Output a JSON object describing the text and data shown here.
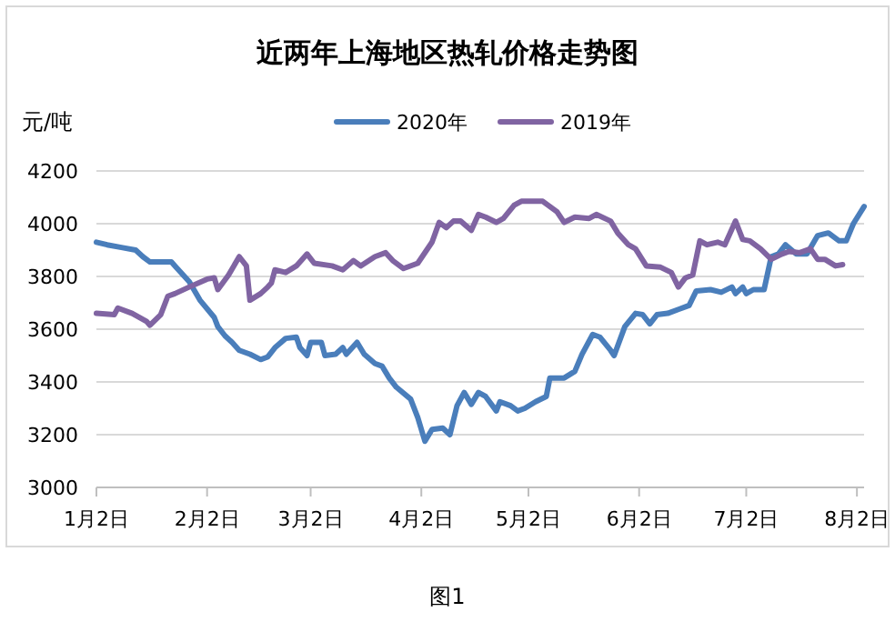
{
  "chart_data": {
    "type": "line",
    "title": "近两年上海地区热轧价格走势图",
    "ylabel": "元/吨",
    "annotations": [
      "图1"
    ],
    "xlim": [
      "--01-02",
      "--08-04"
    ],
    "xticks": [
      {
        "value": "--01-02",
        "label": "1月2日"
      },
      {
        "value": "--02-02",
        "label": "2月2日"
      },
      {
        "value": "--03-02",
        "label": "3月2日"
      },
      {
        "value": "--04-02",
        "label": "4月2日"
      },
      {
        "value": "--05-02",
        "label": "5月2日"
      },
      {
        "value": "--06-02",
        "label": "6月2日"
      },
      {
        "value": "--07-02",
        "label": "7月2日"
      },
      {
        "value": "--08-02",
        "label": "8月2日"
      }
    ],
    "ylim": [
      3000,
      4200
    ],
    "yticks": [
      3000,
      3200,
      3400,
      3600,
      3800,
      4000,
      4200
    ],
    "grid": "y",
    "legend": "top",
    "marker": "none",
    "line_style": "solid",
    "series": [
      {
        "name": "2020年",
        "color": "#4a7ebb",
        "x": [
          "--01-02",
          "--01-05",
          "--01-09",
          "--01-13",
          "--01-15",
          "--01-17",
          "--01-23",
          "--01-24",
          "--01-28",
          "--01-31",
          "--02-04",
          "--02-05",
          "--02-07",
          "--02-09",
          "--02-11",
          "--02-14",
          "--02-17",
          "--02-19",
          "--02-21",
          "--02-24",
          "--02-27",
          "--02-28",
          "--03-01",
          "--03-02",
          "--03-05",
          "--03-06",
          "--03-09",
          "--03-11",
          "--03-12",
          "--03-15",
          "--03-17",
          "--03-20",
          "--03-22",
          "--03-24",
          "--03-26",
          "--03-30",
          "--04-01",
          "--04-03",
          "--04-05",
          "--04-08",
          "--04-10",
          "--04-12",
          "--04-14",
          "--04-16",
          "--04-18",
          "--04-20",
          "--04-23",
          "--04-24",
          "--04-27",
          "--04-29",
          "--05-01",
          "--05-04",
          "--05-07",
          "--05-08",
          "--05-12",
          "--05-15",
          "--05-17",
          "--05-20",
          "--05-22",
          "--05-25",
          "--05-26",
          "--05-29",
          "--06-01",
          "--06-03",
          "--06-05",
          "--06-07",
          "--06-10",
          "--06-13",
          "--06-16",
          "--06-18",
          "--06-22",
          "--06-25",
          "--06-28",
          "--06-29",
          "--07-01",
          "--07-02",
          "--07-04",
          "--07-07",
          "--07-09",
          "--07-11",
          "--07-13",
          "--07-16",
          "--07-19",
          "--07-22",
          "--07-25",
          "--07-28",
          "--07-30",
          "--08-01",
          "--08-04"
        ],
        "values": [
          3930,
          3920,
          3910,
          3900,
          3875,
          3855,
          3855,
          3840,
          3780,
          3710,
          3645,
          3610,
          3575,
          3550,
          3520,
          3505,
          3485,
          3495,
          3530,
          3565,
          3570,
          3530,
          3500,
          3550,
          3550,
          3500,
          3505,
          3530,
          3505,
          3550,
          3505,
          3470,
          3460,
          3415,
          3380,
          3335,
          3265,
          3175,
          3220,
          3225,
          3200,
          3310,
          3360,
          3315,
          3360,
          3345,
          3290,
          3325,
          3310,
          3290,
          3300,
          3325,
          3345,
          3415,
          3415,
          3440,
          3505,
          3580,
          3570,
          3520,
          3500,
          3610,
          3660,
          3655,
          3620,
          3655,
          3660,
          3675,
          3690,
          3745,
          3750,
          3740,
          3760,
          3735,
          3760,
          3735,
          3750,
          3750,
          3875,
          3885,
          3920,
          3885,
          3885,
          3955,
          3965,
          3935,
          3935,
          4000,
          4065
        ]
      },
      {
        "name": "2019年",
        "color": "#8064a2",
        "x": [
          "--01-02",
          "--01-07",
          "--01-08",
          "--01-12",
          "--01-16",
          "--01-17",
          "--01-20",
          "--01-22",
          "--01-24",
          "--01-28",
          "--02-02",
          "--02-04",
          "--02-05",
          "--02-08",
          "--02-11",
          "--02-13",
          "--02-14",
          "--02-17",
          "--02-19",
          "--02-20",
          "--02-21",
          "--02-24",
          "--02-27",
          "--03-01",
          "--03-03",
          "--03-08",
          "--03-11",
          "--03-14",
          "--03-16",
          "--03-20",
          "--03-23",
          "--03-25",
          "--03-28",
          "--04-01",
          "--04-05",
          "--04-07",
          "--04-09",
          "--04-11",
          "--04-13",
          "--04-16",
          "--04-18",
          "--04-20",
          "--04-23",
          "--04-25",
          "--04-28",
          "--04-30",
          "--05-06",
          "--05-08",
          "--05-10",
          "--05-12",
          "--05-15",
          "--05-19",
          "--05-21",
          "--05-25",
          "--05-27",
          "--05-30",
          "--06-01",
          "--06-04",
          "--06-08",
          "--06-11",
          "--06-13",
          "--06-15",
          "--06-17",
          "--06-19",
          "--06-21",
          "--06-24",
          "--06-26",
          "--06-29",
          "--07-01",
          "--07-03",
          "--07-06",
          "--07-09",
          "--07-12",
          "--07-14",
          "--07-17",
          "--07-20",
          "--07-22",
          "--07-24",
          "--07-27",
          "--07-29"
        ],
        "values": [
          3660,
          3655,
          3680,
          3660,
          3630,
          3615,
          3655,
          3725,
          3735,
          3760,
          3790,
          3795,
          3750,
          3805,
          3875,
          3840,
          3710,
          3735,
          3760,
          3775,
          3825,
          3815,
          3840,
          3885,
          3850,
          3840,
          3825,
          3860,
          3840,
          3875,
          3890,
          3860,
          3830,
          3850,
          3930,
          4005,
          3985,
          4010,
          4010,
          3975,
          4035,
          4025,
          4005,
          4020,
          4070,
          4085,
          4085,
          4065,
          4045,
          4005,
          4025,
          4020,
          4035,
          4010,
          3965,
          3920,
          3905,
          3840,
          3835,
          3815,
          3760,
          3795,
          3805,
          3935,
          3920,
          3930,
          3920,
          4010,
          3940,
          3935,
          3905,
          3865,
          3885,
          3895,
          3890,
          3905,
          3865,
          3865,
          3840,
          3845
        ]
      }
    ]
  }
}
